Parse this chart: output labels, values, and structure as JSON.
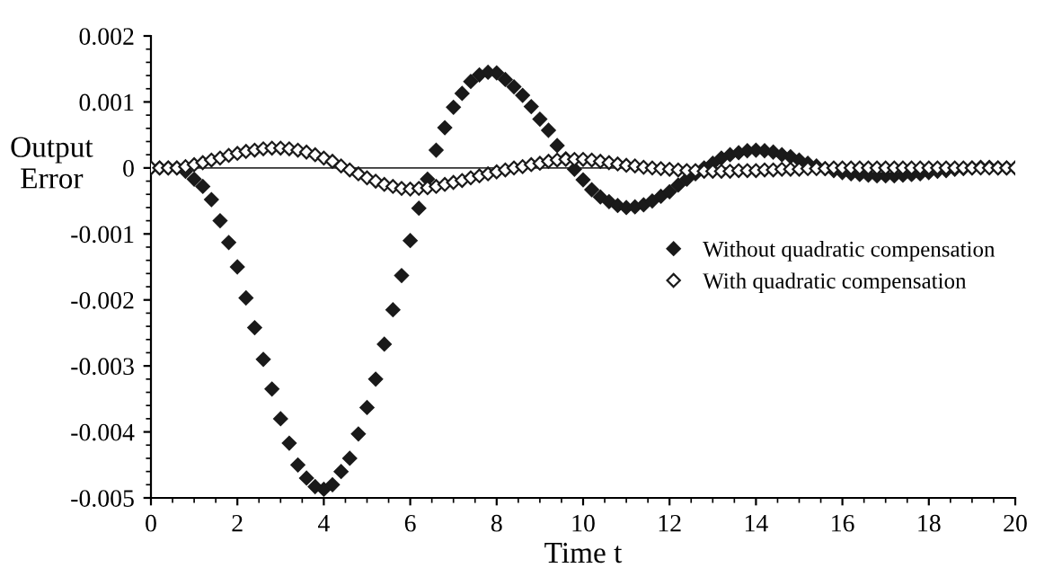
{
  "chart_data": {
    "type": "scatter",
    "xlabel": "Time t",
    "ylabel": "Output\nError",
    "x": [
      0,
      0.2,
      0.4,
      0.6,
      0.8,
      1.0,
      1.2,
      1.4,
      1.6,
      1.8,
      2.0,
      2.2,
      2.4,
      2.6,
      2.8,
      3.0,
      3.2,
      3.4,
      3.6,
      3.8,
      4.0,
      4.2,
      4.4,
      4.6,
      4.8,
      5.0,
      5.2,
      5.4,
      5.6,
      5.8,
      6.0,
      6.2,
      6.4,
      6.6,
      6.8,
      7.0,
      7.2,
      7.4,
      7.6,
      7.8,
      8.0,
      8.2,
      8.4,
      8.6,
      8.8,
      9.0,
      9.2,
      9.4,
      9.6,
      9.8,
      10.0,
      10.2,
      10.4,
      10.6,
      10.8,
      11.0,
      11.2,
      11.4,
      11.6,
      11.8,
      12.0,
      12.2,
      12.4,
      12.6,
      12.8,
      13.0,
      13.2,
      13.4,
      13.6,
      13.8,
      14.0,
      14.2,
      14.4,
      14.6,
      14.8,
      15.0,
      15.2,
      15.4,
      15.6,
      15.8,
      16.0,
      16.2,
      16.4,
      16.6,
      16.8,
      17.0,
      17.2,
      17.4,
      17.6,
      17.8,
      18.0,
      18.2,
      18.4,
      18.6,
      18.8,
      19.0,
      19.2,
      19.4,
      19.6,
      19.8,
      20.0
    ],
    "series": [
      {
        "name": "Without quadratic compensation",
        "color": "#1a1a1a",
        "marker": "diamond",
        "values": [
          0,
          0,
          0,
          0,
          -5e-05,
          -0.00017,
          -0.00028,
          -0.00048,
          -0.0008,
          -0.00113,
          -0.0015,
          -0.00197,
          -0.00242,
          -0.0029,
          -0.00335,
          -0.0038,
          -0.00417,
          -0.0045,
          -0.0047,
          -0.00483,
          -0.00487,
          -0.0048,
          -0.0046,
          -0.0044,
          -0.00403,
          -0.00363,
          -0.0032,
          -0.00267,
          -0.00215,
          -0.00163,
          -0.0011,
          -0.00061,
          -0.00017,
          0.00027,
          0.00061,
          0.00092,
          0.00113,
          0.00131,
          0.00141,
          0.00145,
          0.00144,
          0.00134,
          0.00123,
          0.0011,
          0.00093,
          0.00074,
          0.00057,
          0.00034,
          0.00014,
          -2e-05,
          -0.00018,
          -0.00033,
          -0.00044,
          -0.00051,
          -0.00057,
          -0.0006,
          -0.00059,
          -0.00056,
          -0.0005,
          -0.00043,
          -0.00036,
          -0.00026,
          -0.00017,
          -9e-05,
          0,
          7e-05,
          0.00015,
          0.0002,
          0.00023,
          0.00026,
          0.00027,
          0.00026,
          0.00024,
          0.0002,
          0.00017,
          0.00012,
          7e-05,
          3e-05,
          -1e-05,
          -4e-05,
          -7e-05,
          -9e-05,
          -0.0001,
          -0.00011,
          -0.00012,
          -0.00012,
          -0.00012,
          -0.00011,
          -0.0001,
          -9e-05,
          -7e-05,
          -5e-05,
          -4e-05,
          -2e-05,
          -1e-05,
          0,
          1e-05,
          1e-05,
          0,
          0,
          0
        ]
      },
      {
        "name": "With quadratic compensation",
        "color": "#ffffff",
        "marker": "diamond",
        "values": [
          0,
          0,
          0,
          0,
          2e-05,
          5e-05,
          8e-05,
          0.00012,
          0.00015,
          0.00019,
          0.00022,
          0.00025,
          0.00027,
          0.00029,
          0.0003,
          0.0003,
          0.00029,
          0.00027,
          0.00024,
          0.0002,
          0.00015,
          0.0001,
          3e-05,
          -3e-05,
          -9e-05,
          -0.00015,
          -0.0002,
          -0.00025,
          -0.00028,
          -0.00031,
          -0.00032,
          -0.00031,
          -0.0003,
          -0.00028,
          -0.00025,
          -0.00022,
          -0.00019,
          -0.00015,
          -0.00012,
          -9e-05,
          -6e-05,
          -3e-05,
          0,
          2e-05,
          5e-05,
          7e-05,
          0.0001,
          0.00012,
          0.00013,
          0.00013,
          0.00013,
          0.00012,
          0.0001,
          8e-05,
          6e-05,
          4e-05,
          3e-05,
          1e-05,
          0,
          -1e-05,
          -2e-05,
          -3e-05,
          -4e-05,
          -4e-05,
          -5e-05,
          -5e-05,
          -5e-05,
          -5e-05,
          -4e-05,
          -4e-05,
          -4e-05,
          -3e-05,
          -3e-05,
          -2e-05,
          -2e-05,
          -2e-05,
          -1e-05,
          -1e-05,
          -1e-05,
          0,
          0,
          0,
          0,
          0,
          0,
          0,
          0,
          0,
          0,
          0,
          0,
          0,
          0,
          0,
          0,
          0,
          0,
          0,
          0,
          0,
          0
        ]
      }
    ],
    "xlim": [
      0,
      20
    ],
    "xticks": [
      0,
      2,
      4,
      6,
      8,
      10,
      12,
      14,
      16,
      18,
      20
    ],
    "ylim": [
      -0.005,
      0.002
    ],
    "yticks": [
      -0.005,
      -0.004,
      -0.003,
      -0.002,
      -0.001,
      0,
      0.001,
      0.002
    ],
    "ref_lines": [
      {
        "axis": "y",
        "value": 0,
        "color": "#333333"
      }
    ],
    "grid": false,
    "legend": "center right"
  }
}
